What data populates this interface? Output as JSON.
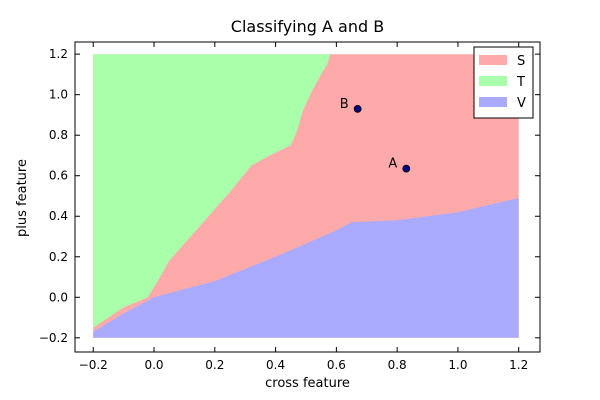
{
  "chart_data": {
    "type": "scatter",
    "title": "Classifying A and B",
    "xlabel": "cross feature",
    "ylabel": "plus feature",
    "xlim": [
      -0.26,
      1.27
    ],
    "ylim": [
      -0.27,
      1.26
    ],
    "xticks": [
      -0.2,
      0.0,
      0.2,
      0.4,
      0.6,
      0.8,
      1.0,
      1.2
    ],
    "xtick_labels": [
      "−0.2",
      "0.0",
      "0.2",
      "0.4",
      "0.6",
      "0.8",
      "1.0",
      "1.2"
    ],
    "yticks": [
      -0.2,
      0.0,
      0.2,
      0.4,
      0.6,
      0.8,
      1.0,
      1.2
    ],
    "ytick_labels": [
      "−0.2",
      "0.0",
      "0.2",
      "0.4",
      "0.6",
      "0.8",
      "1.0",
      "1.2"
    ],
    "grid": false,
    "legend_position": "top-right",
    "regions": [
      {
        "name": "S",
        "color": "#ffaaaa",
        "polygon": [
          [
            -0.2,
            1.2
          ],
          [
            1.2,
            1.2
          ],
          [
            1.2,
            -0.2
          ],
          [
            -0.2,
            -0.2
          ]
        ]
      },
      {
        "name": "T",
        "color": "#aaffaa",
        "polygon": [
          [
            -0.2,
            1.2
          ],
          [
            0.58,
            1.2
          ],
          [
            0.57,
            1.15
          ],
          [
            0.55,
            1.1
          ],
          [
            0.52,
            1.02
          ],
          [
            0.49,
            0.92
          ],
          [
            0.47,
            0.82
          ],
          [
            0.45,
            0.75
          ],
          [
            0.38,
            0.7
          ],
          [
            0.32,
            0.65
          ],
          [
            0.25,
            0.52
          ],
          [
            0.15,
            0.35
          ],
          [
            0.05,
            0.18
          ],
          [
            0.02,
            0.1
          ],
          [
            -0.02,
            0.0
          ],
          [
            -0.1,
            -0.05
          ],
          [
            -0.2,
            -0.15
          ]
        ]
      },
      {
        "name": "V",
        "color": "#aaaaff",
        "polygon": [
          [
            -0.2,
            -0.17
          ],
          [
            -0.1,
            -0.08
          ],
          [
            0.0,
            0.0
          ],
          [
            0.2,
            0.08
          ],
          [
            0.4,
            0.2
          ],
          [
            0.6,
            0.33
          ],
          [
            0.65,
            0.37
          ],
          [
            0.8,
            0.38
          ],
          [
            0.9,
            0.4
          ],
          [
            1.0,
            0.42
          ],
          [
            1.2,
            0.49
          ],
          [
            1.2,
            -0.2
          ],
          [
            -0.2,
            -0.2
          ]
        ]
      }
    ],
    "points": [
      {
        "label": "A",
        "x": 0.83,
        "y": 0.635
      },
      {
        "label": "B",
        "x": 0.67,
        "y": 0.93
      }
    ],
    "point_color": "#000080",
    "legend": [
      {
        "label": "S",
        "color": "#ffaaaa"
      },
      {
        "label": "T",
        "color": "#aaffaa"
      },
      {
        "label": "V",
        "color": "#aaaaff"
      }
    ]
  }
}
